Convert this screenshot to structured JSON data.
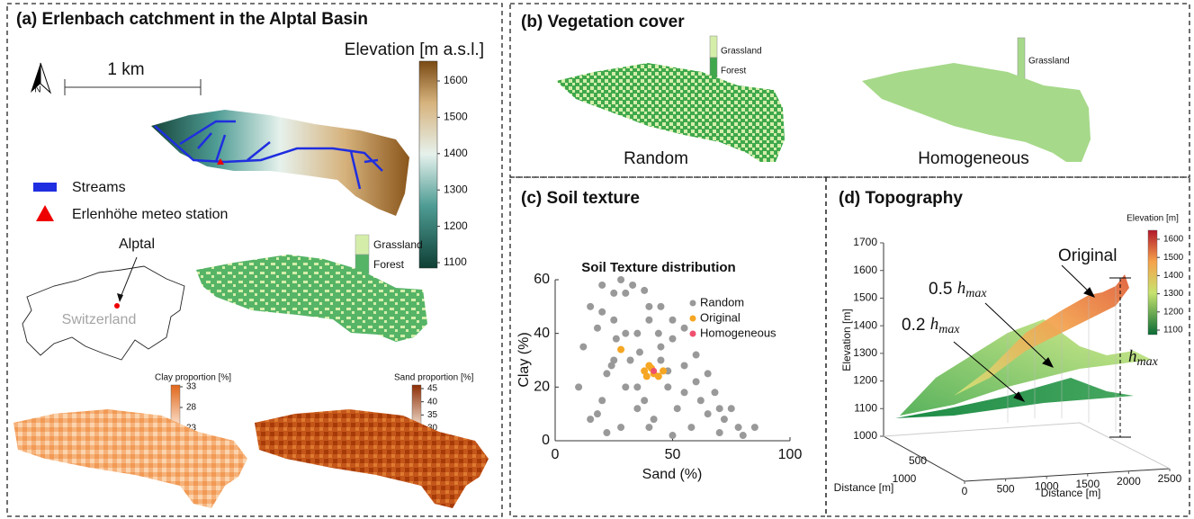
{
  "panel_a": {
    "title": "(a) Erlenbach catchment in the Alptal Basin",
    "north": "N",
    "scale_label": "1 km",
    "legend": [
      "Streams",
      "Erlenhöhe meteo station"
    ],
    "elevation_colorbar": {
      "title": "Elevation [m a.s.l.]",
      "ticks": [
        1100,
        1200,
        1300,
        1400,
        1500,
        1600
      ]
    },
    "vegetation_legend": [
      "Grassland",
      "Forest"
    ],
    "inset": {
      "place": "Alptal",
      "country": "Switzerland"
    },
    "clay_colorbar": {
      "title": "Clay proportion [%]",
      "ticks": [
        23,
        28,
        33
      ]
    },
    "sand_colorbar": {
      "title": "Sand proportion [%]",
      "ticks": [
        30,
        35,
        40,
        45
      ]
    }
  },
  "panel_b": {
    "title": "(b) Vegetation cover",
    "legend_random": [
      "Grassland",
      "Forest"
    ],
    "legend_homogeneous": [
      "Grassland"
    ],
    "random_label": "Random",
    "homogeneous_label": "Homogeneous"
  },
  "panel_c": {
    "title": "(c) Soil texture"
  },
  "chart_data": {
    "type": "scatter",
    "title": "Soil Texture distribution",
    "x_label": "Sand (%)",
    "y_label": "Clay (%)",
    "xlim": [
      0,
      100
    ],
    "ylim": [
      0,
      60
    ],
    "xticks": [
      0,
      50,
      100
    ],
    "yticks": [
      0,
      20,
      40,
      60
    ],
    "legend": "right",
    "series": [
      {
        "name": "Random",
        "color": "#999999",
        "x": [
          10,
          12,
          15,
          18,
          20,
          22,
          25,
          28,
          30,
          32,
          35,
          38,
          40,
          42,
          45,
          48,
          50,
          52,
          55,
          58,
          60,
          62,
          65,
          68,
          70,
          72,
          75,
          78,
          80,
          85,
          15,
          20,
          25,
          30,
          35,
          40,
          45,
          50,
          55,
          60,
          65,
          70,
          20,
          25,
          30,
          35,
          40,
          45,
          50,
          55,
          28,
          33,
          38,
          44,
          22,
          26,
          18,
          24,
          36,
          48
        ],
        "values": [
          20,
          35,
          50,
          10,
          58,
          25,
          45,
          5,
          55,
          30,
          40,
          15,
          50,
          8,
          35,
          20,
          45,
          12,
          28,
          5,
          22,
          15,
          10,
          18,
          3,
          8,
          12,
          5,
          2,
          5,
          8,
          15,
          30,
          40,
          20,
          45,
          50,
          38,
          18,
          32,
          25,
          12,
          48,
          55,
          20,
          12,
          5,
          30,
          2,
          42,
          60,
          58,
          56,
          40,
          3,
          38,
          42,
          28,
          33,
          26
        ]
      },
      {
        "name": "Original",
        "color": "#f5a623",
        "x": [
          38,
          40,
          42,
          44,
          39,
          41,
          46,
          28
        ],
        "values": [
          26,
          28,
          25,
          24,
          24,
          27,
          26,
          34
        ]
      },
      {
        "name": "Homogeneous",
        "color": "#f0506e",
        "x": [
          42
        ],
        "values": [
          26
        ]
      }
    ]
  },
  "panel_d": {
    "title": "(d) Topography",
    "z_label": "Elevation [m]",
    "x_label": "Distance [m]",
    "y_label": "Distance [m]",
    "zticks": [
      1000,
      1100,
      1200,
      1300,
      1400,
      1500,
      1600,
      1700
    ],
    "xticks": [
      0,
      500,
      1000,
      1500,
      2000,
      2500
    ],
    "yticks": [
      500,
      1000
    ],
    "colorbar": {
      "title": "Elevation [m]",
      "ticks": [
        1100,
        1200,
        1300,
        1400,
        1500,
        1600
      ]
    },
    "original_label": "Original",
    "half_label": {
      "coef": "0.5",
      "symbol": "h",
      "subscript": "max"
    },
    "fifth_label": {
      "coef": "0.2",
      "symbol": "h",
      "subscript": "max"
    },
    "hmax_label": {
      "symbol": "h",
      "subscript": "max"
    }
  }
}
